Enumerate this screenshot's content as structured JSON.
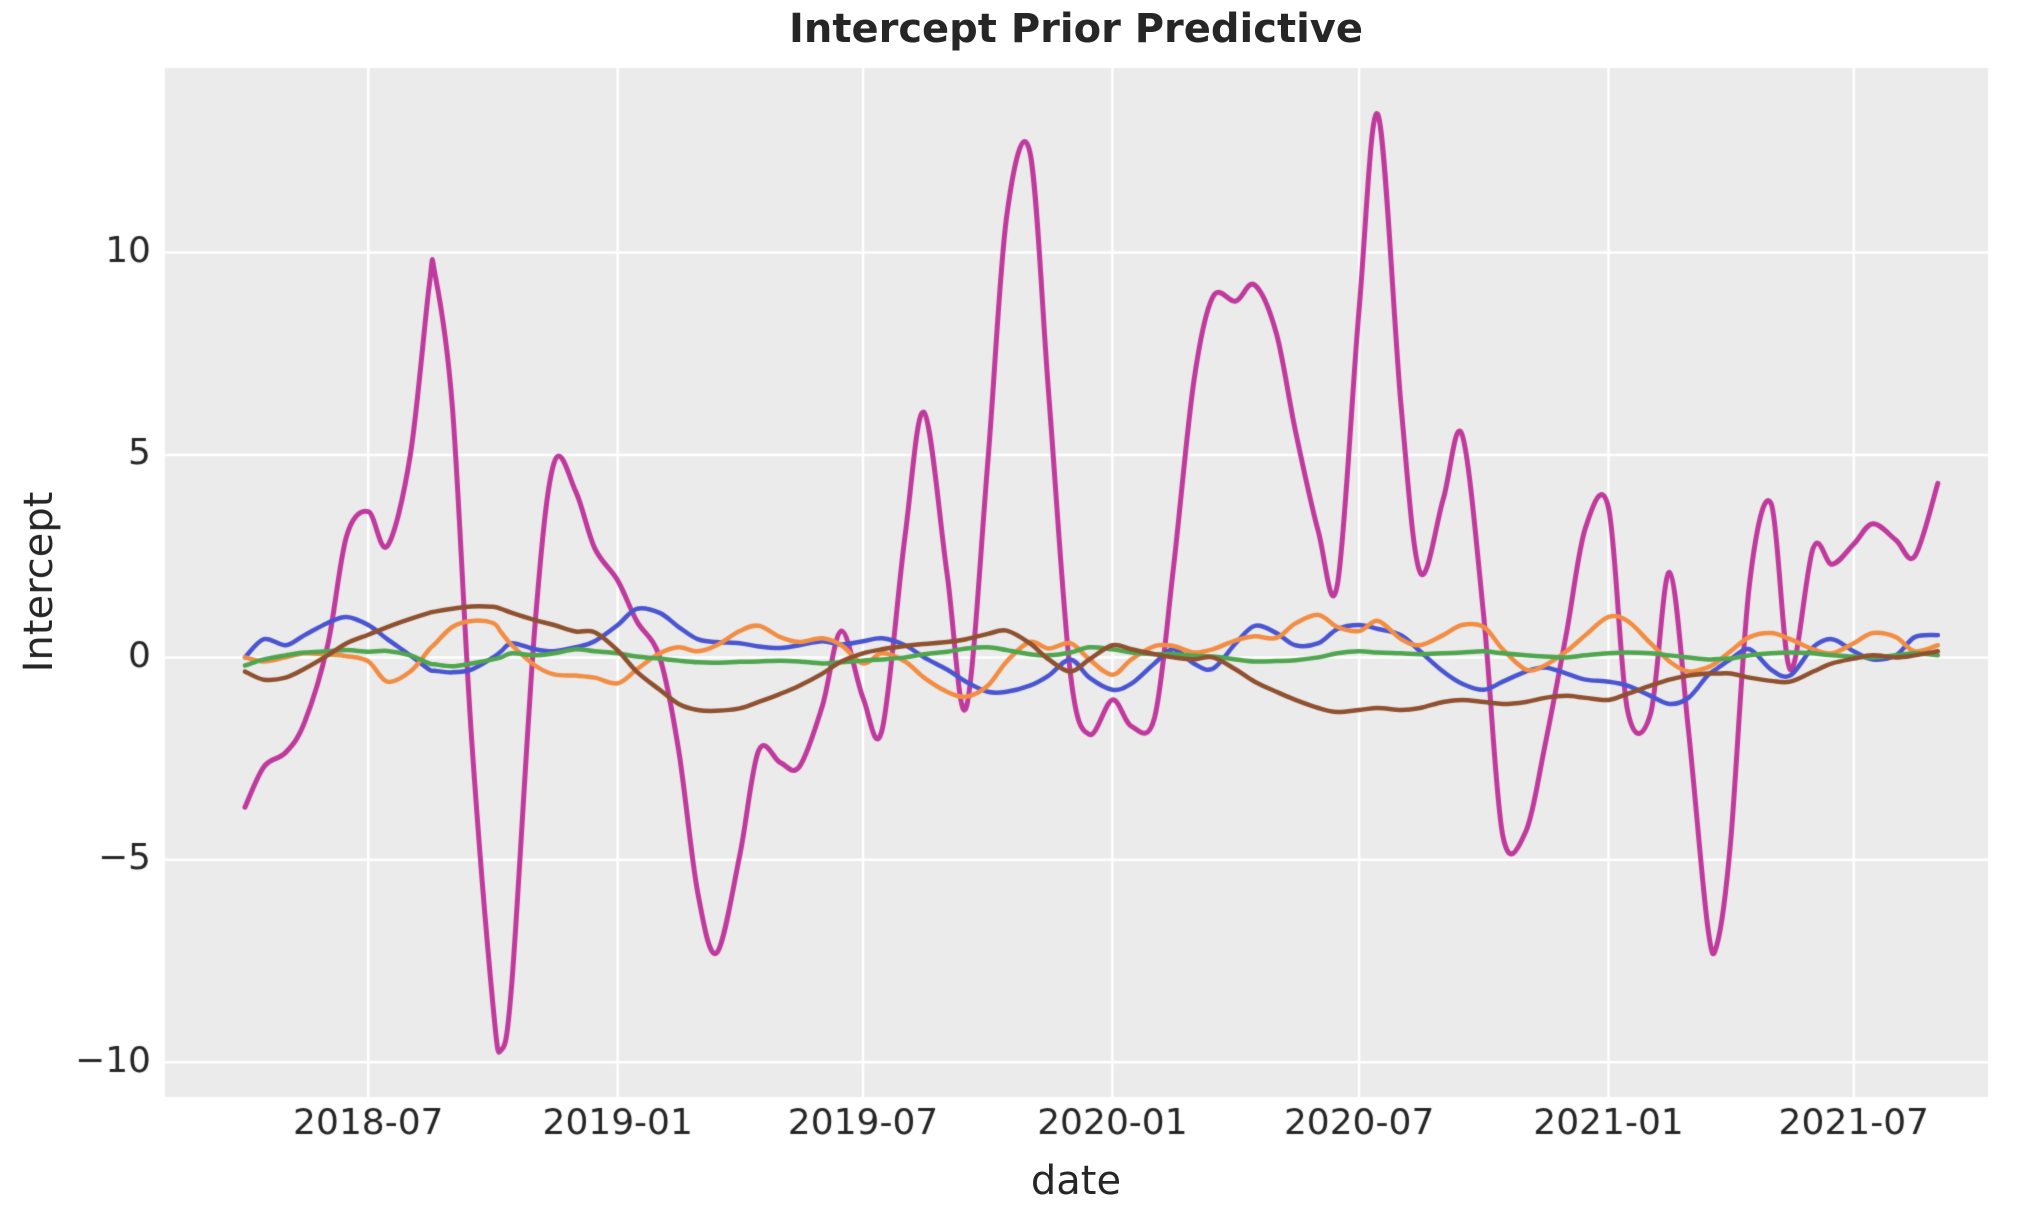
{
  "chart_data": {
    "type": "line",
    "title": "Intercept Prior Predictive",
    "xlabel": "date",
    "ylabel": "Intercept",
    "figure_bg": "#ffffff",
    "plot_bg": "#ebebeb",
    "text_color": "#262626",
    "grid": {
      "on": true,
      "color": "#ffffff",
      "linewidth": 2.5
    },
    "legend": "none",
    "xlim": [
      "2018-02-01",
      "2021-10-08"
    ],
    "ylim": [
      -10.86,
      14.56
    ],
    "x_ticks": [
      {
        "pos": "2018-07-01",
        "label": "2018-07"
      },
      {
        "pos": "2019-01-01",
        "label": "2019-01"
      },
      {
        "pos": "2019-07-01",
        "label": "2019-07"
      },
      {
        "pos": "2020-01-01",
        "label": "2020-01"
      },
      {
        "pos": "2020-07-01",
        "label": "2020-07"
      },
      {
        "pos": "2021-01-01",
        "label": "2021-01"
      },
      {
        "pos": "2021-07-01",
        "label": "2021-07"
      }
    ],
    "y_ticks": [
      {
        "pos": -10,
        "label": "−10"
      },
      {
        "pos": -5,
        "label": "−5"
      },
      {
        "pos": 0,
        "label": "0"
      },
      {
        "pos": 5,
        "label": "5"
      },
      {
        "pos": 10,
        "label": "10"
      }
    ],
    "x": [
      "2018-04-01",
      "2018-04-15",
      "2018-05-01",
      "2018-05-15",
      "2018-06-01",
      "2018-06-15",
      "2018-07-01",
      "2018-07-15",
      "2018-08-01",
      "2018-08-15",
      "2018-08-19",
      "2018-09-01",
      "2018-09-15",
      "2018-10-01",
      "2018-10-07",
      "2018-10-15",
      "2018-11-01",
      "2018-11-15",
      "2018-12-01",
      "2018-12-15",
      "2019-01-01",
      "2019-01-15",
      "2019-02-01",
      "2019-02-15",
      "2019-03-01",
      "2019-03-15",
      "2019-04-01",
      "2019-04-15",
      "2019-05-01",
      "2019-05-15",
      "2019-06-01",
      "2019-06-15",
      "2019-07-01",
      "2019-07-15",
      "2019-08-01",
      "2019-08-15",
      "2019-09-01",
      "2019-09-15",
      "2019-10-01",
      "2019-10-15",
      "2019-11-01",
      "2019-11-15",
      "2019-12-01",
      "2019-12-15",
      "2020-01-01",
      "2020-01-15",
      "2020-02-01",
      "2020-02-15",
      "2020-03-01",
      "2020-03-15",
      "2020-04-01",
      "2020-04-15",
      "2020-05-01",
      "2020-05-15",
      "2020-06-01",
      "2020-06-15",
      "2020-07-01",
      "2020-07-15",
      "2020-08-01",
      "2020-08-15",
      "2020-09-01",
      "2020-09-15",
      "2020-10-01",
      "2020-10-15",
      "2020-11-01",
      "2020-11-15",
      "2020-12-01",
      "2020-12-15",
      "2021-01-01",
      "2021-01-15",
      "2021-02-01",
      "2021-02-15",
      "2021-03-01",
      "2021-03-15",
      "2021-03-22",
      "2021-04-01",
      "2021-04-15",
      "2021-05-01",
      "2021-05-15",
      "2021-06-01",
      "2021-06-15",
      "2021-07-01",
      "2021-07-15",
      "2021-08-01",
      "2021-08-15",
      "2021-09-01"
    ],
    "series": [
      {
        "name": "sample-magenta",
        "color": "#c03a9d",
        "linewidth": 5,
        "values": [
          -3.7,
          -2.7,
          -2.35,
          -1.6,
          0.3,
          3.0,
          3.6,
          2.75,
          5.0,
          9.2,
          9.5,
          6.2,
          -1.9,
          -8.6,
          -9.7,
          -8.0,
          0.8,
          4.8,
          4.1,
          2.7,
          1.9,
          0.9,
          0.0,
          -2.3,
          -5.8,
          -7.3,
          -4.9,
          -2.3,
          -2.6,
          -2.7,
          -1.2,
          0.65,
          -1.0,
          -1.8,
          3.0,
          6.05,
          2.07,
          -1.25,
          4.8,
          10.9,
          12.5,
          6.5,
          -0.4,
          -1.9,
          -1.05,
          -1.7,
          -1.5,
          2.2,
          6.8,
          8.9,
          8.8,
          9.2,
          8.0,
          5.6,
          3.1,
          1.8,
          8.6,
          13.4,
          6.2,
          2.1,
          3.9,
          5.5,
          1.0,
          -4.4,
          -4.3,
          -2.2,
          0.6,
          3.2,
          3.7,
          -1.3,
          -1.4,
          2.1,
          -1.8,
          -6.6,
          -7.1,
          -4.6,
          1.8,
          3.8,
          -0.3,
          2.7,
          2.3,
          2.8,
          3.3,
          2.9,
          2.5,
          4.3
        ]
      },
      {
        "name": "sample-blue",
        "color": "#4a55d2",
        "linewidth": 4.5,
        "values": [
          0.0,
          0.45,
          0.3,
          0.55,
          0.85,
          1.0,
          0.8,
          0.45,
          0.05,
          -0.3,
          -0.33,
          -0.37,
          -0.3,
          0.0,
          0.15,
          0.35,
          0.2,
          0.15,
          0.25,
          0.4,
          0.8,
          1.2,
          1.1,
          0.75,
          0.45,
          0.38,
          0.35,
          0.27,
          0.23,
          0.3,
          0.4,
          0.32,
          0.4,
          0.47,
          0.3,
          0.0,
          -0.3,
          -0.6,
          -0.85,
          -0.85,
          -0.7,
          -0.45,
          -0.05,
          -0.5,
          -0.8,
          -0.65,
          -0.15,
          0.2,
          -0.15,
          -0.28,
          0.35,
          0.78,
          0.6,
          0.3,
          0.35,
          0.7,
          0.8,
          0.7,
          0.55,
          0.15,
          -0.35,
          -0.65,
          -0.8,
          -0.6,
          -0.35,
          -0.25,
          -0.4,
          -0.55,
          -0.6,
          -0.7,
          -0.95,
          -1.15,
          -1.0,
          -0.45,
          -0.28,
          -0.05,
          0.2,
          -0.3,
          -0.45,
          0.25,
          0.45,
          0.15,
          -0.05,
          0.05,
          0.5,
          0.55
        ]
      },
      {
        "name": "sample-orange",
        "color": "#f28d44",
        "linewidth": 4.5,
        "values": [
          0.0,
          -0.1,
          0.0,
          0.1,
          0.07,
          0.03,
          -0.1,
          -0.6,
          -0.35,
          0.2,
          0.33,
          0.75,
          0.9,
          0.85,
          0.62,
          0.3,
          -0.2,
          -0.42,
          -0.45,
          -0.5,
          -0.64,
          -0.3,
          0.1,
          0.25,
          0.15,
          0.3,
          0.65,
          0.78,
          0.5,
          0.38,
          0.47,
          0.3,
          -0.15,
          0.1,
          -0.1,
          -0.5,
          -0.85,
          -0.97,
          -0.7,
          -0.1,
          0.38,
          0.22,
          0.35,
          -0.05,
          -0.43,
          -0.05,
          0.28,
          0.28,
          0.12,
          0.2,
          0.42,
          0.52,
          0.48,
          0.84,
          1.05,
          0.75,
          0.65,
          0.9,
          0.45,
          0.3,
          0.55,
          0.8,
          0.75,
          0.2,
          -0.3,
          -0.2,
          0.15,
          0.55,
          1.0,
          0.9,
          0.35,
          -0.1,
          -0.35,
          -0.25,
          -0.12,
          0.15,
          0.5,
          0.6,
          0.45,
          0.2,
          0.1,
          0.35,
          0.6,
          0.5,
          0.15,
          0.3
        ]
      },
      {
        "name": "sample-green",
        "color": "#4fa64f",
        "linewidth": 4.5,
        "values": [
          -0.2,
          -0.05,
          0.05,
          0.12,
          0.15,
          0.18,
          0.14,
          0.16,
          0.05,
          -0.15,
          -0.17,
          -0.22,
          -0.15,
          -0.05,
          0.0,
          0.1,
          0.05,
          0.1,
          0.2,
          0.15,
          0.1,
          0.02,
          -0.03,
          -0.08,
          -0.12,
          -0.13,
          -0.11,
          -0.1,
          -0.08,
          -0.1,
          -0.15,
          -0.12,
          -0.08,
          -0.05,
          0.0,
          0.08,
          0.14,
          0.22,
          0.25,
          0.18,
          0.08,
          0.05,
          0.12,
          0.25,
          0.2,
          0.12,
          0.08,
          0.08,
          0.04,
          0.02,
          -0.05,
          -0.1,
          -0.09,
          -0.07,
          0.0,
          0.1,
          0.15,
          0.12,
          0.1,
          0.08,
          0.1,
          0.12,
          0.15,
          0.1,
          0.05,
          0.02,
          0.0,
          0.05,
          0.1,
          0.12,
          0.1,
          0.05,
          0.0,
          -0.05,
          -0.04,
          -0.03,
          0.05,
          0.1,
          0.12,
          0.1,
          0.05,
          0.02,
          0.0,
          0.05,
          0.1,
          0.05
        ]
      },
      {
        "name": "sample-brown",
        "color": "#8f5130",
        "linewidth": 4.5,
        "values": [
          -0.35,
          -0.55,
          -0.5,
          -0.28,
          0.05,
          0.35,
          0.56,
          0.75,
          0.95,
          1.1,
          1.13,
          1.2,
          1.26,
          1.25,
          1.2,
          1.1,
          0.92,
          0.8,
          0.64,
          0.62,
          0.17,
          -0.35,
          -0.8,
          -1.15,
          -1.3,
          -1.32,
          -1.26,
          -1.1,
          -0.9,
          -0.7,
          -0.4,
          -0.1,
          0.1,
          0.2,
          0.28,
          0.33,
          0.38,
          0.45,
          0.58,
          0.66,
          0.35,
          -0.05,
          -0.35,
          -0.05,
          0.3,
          0.2,
          0.08,
          0.0,
          -0.05,
          0.0,
          -0.3,
          -0.6,
          -0.85,
          -1.05,
          -1.25,
          -1.35,
          -1.3,
          -1.25,
          -1.3,
          -1.25,
          -1.1,
          -1.05,
          -1.1,
          -1.15,
          -1.1,
          -1.0,
          -0.95,
          -1.0,
          -1.05,
          -0.9,
          -0.7,
          -0.55,
          -0.45,
          -0.4,
          -0.4,
          -0.4,
          -0.5,
          -0.58,
          -0.6,
          -0.35,
          -0.15,
          -0.03,
          0.05,
          0.0,
          0.05,
          0.15
        ]
      }
    ]
  }
}
